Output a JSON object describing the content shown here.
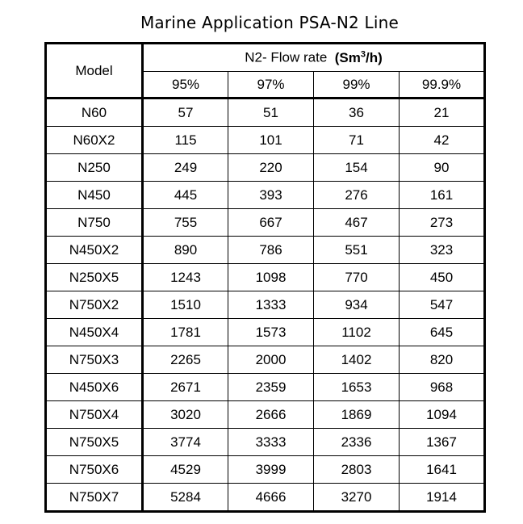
{
  "title": "Marine Application PSA-N2 Line",
  "table": {
    "model_header": "Model",
    "flow_header_prefix": "N2- Flow rate",
    "flow_header_unit_open": "(Sm",
    "flow_header_unit_sup": "3",
    "flow_header_unit_close": "/h)",
    "purity_columns": [
      "95%",
      "97%",
      "99%",
      "99.9%"
    ],
    "rows": [
      {
        "model": "N60",
        "values": [
          "57",
          "51",
          "36",
          "21"
        ]
      },
      {
        "model": "N60X2",
        "values": [
          "115",
          "101",
          "71",
          "42"
        ]
      },
      {
        "model": "N250",
        "values": [
          "249",
          "220",
          "154",
          "90"
        ]
      },
      {
        "model": "N450",
        "values": [
          "445",
          "393",
          "276",
          "161"
        ]
      },
      {
        "model": "N750",
        "values": [
          "755",
          "667",
          "467",
          "273"
        ]
      },
      {
        "model": "N450X2",
        "values": [
          "890",
          "786",
          "551",
          "323"
        ]
      },
      {
        "model": "N250X5",
        "values": [
          "1243",
          "1098",
          "770",
          "450"
        ]
      },
      {
        "model": "N750X2",
        "values": [
          "1510",
          "1333",
          "934",
          "547"
        ]
      },
      {
        "model": "N450X4",
        "values": [
          "1781",
          "1573",
          "1102",
          "645"
        ]
      },
      {
        "model": "N750X3",
        "values": [
          "2265",
          "2000",
          "1402",
          "820"
        ]
      },
      {
        "model": "N450X6",
        "values": [
          "2671",
          "2359",
          "1653",
          "968"
        ]
      },
      {
        "model": "N750X4",
        "values": [
          "3020",
          "2666",
          "1869",
          "1094"
        ]
      },
      {
        "model": "N750X5",
        "values": [
          "3774",
          "3333",
          "2336",
          "1367"
        ]
      },
      {
        "model": "N750X6",
        "values": [
          "4529",
          "3999",
          "2803",
          "1641"
        ]
      },
      {
        "model": "N750X7",
        "values": [
          "5284",
          "4666",
          "3270",
          "1914"
        ]
      }
    ]
  }
}
